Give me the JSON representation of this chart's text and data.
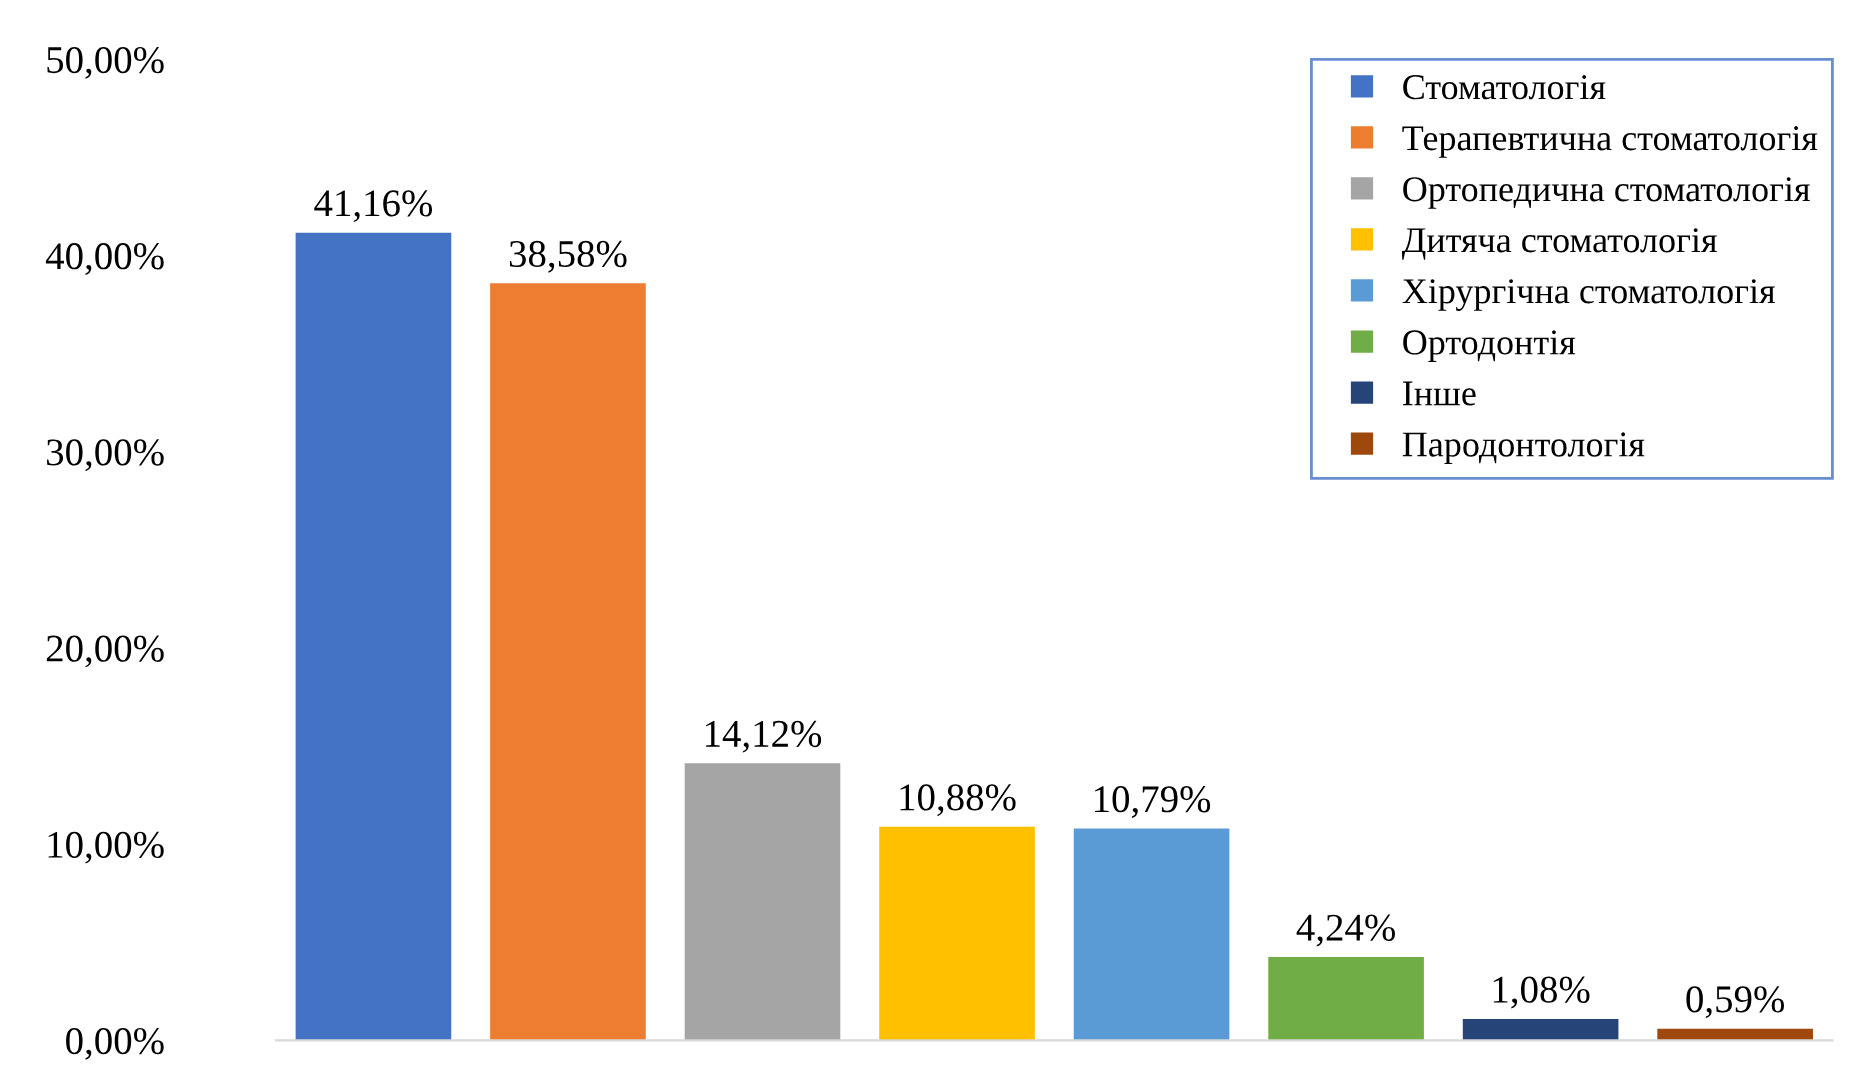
{
  "chart_data": {
    "type": "bar",
    "categories": [
      null,
      null,
      null,
      null,
      null,
      null,
      null,
      null
    ],
    "series": [
      {
        "name": "Стоматологія",
        "color": "#4472c4",
        "values": [
          41.16,
          null,
          null,
          null,
          null,
          null,
          null,
          null
        ],
        "value_labels": [
          "41,16%",
          null,
          null,
          null,
          null,
          null,
          null,
          null
        ]
      },
      {
        "name": "Терапевтична стоматологія",
        "color": "#ed7d31",
        "values": [
          null,
          38.58,
          null,
          null,
          null,
          null,
          null,
          null
        ],
        "value_labels": [
          null,
          "38,58%",
          null,
          null,
          null,
          null,
          null,
          null
        ]
      },
      {
        "name": "Ортопедична стоматологія",
        "color": "#a5a5a5",
        "values": [
          null,
          null,
          14.12,
          null,
          null,
          null,
          null,
          null
        ],
        "value_labels": [
          null,
          null,
          "14,12%",
          null,
          null,
          null,
          null,
          null
        ]
      },
      {
        "name": "Дитяча стоматологія",
        "color": "#ffc000",
        "values": [
          null,
          null,
          null,
          10.88,
          null,
          null,
          null,
          null
        ],
        "value_labels": [
          null,
          null,
          null,
          "10,88%",
          null,
          null,
          null,
          null
        ]
      },
      {
        "name": "Хірургічна стоматологія",
        "color": "#5b9bd5",
        "values": [
          null,
          null,
          null,
          null,
          10.79,
          null,
          null,
          null
        ],
        "value_labels": [
          null,
          null,
          null,
          null,
          "10,79%",
          null,
          null,
          null
        ]
      },
      {
        "name": "Ортодонтія",
        "color": "#70ad47",
        "values": [
          null,
          null,
          null,
          null,
          null,
          4.24,
          null,
          null
        ],
        "value_labels": [
          null,
          null,
          null,
          null,
          null,
          "4,24%",
          null,
          null
        ]
      },
      {
        "name": "Інше",
        "color": "#264478",
        "values": [
          null,
          null,
          null,
          null,
          null,
          null,
          1.08,
          null
        ],
        "value_labels": [
          null,
          null,
          null,
          null,
          null,
          null,
          "1,08%",
          null
        ]
      },
      {
        "name": "Пародонтологія",
        "color": "#9e480e",
        "values": [
          null,
          null,
          null,
          null,
          null,
          null,
          null,
          0.59
        ],
        "value_labels": [
          null,
          null,
          null,
          null,
          null,
          null,
          null,
          "0,59%"
        ]
      }
    ],
    "ylim": [
      0,
      50
    ],
    "yticks": [
      {
        "value": 0,
        "label": "0,00%"
      },
      {
        "value": 10,
        "label": "10,00%"
      },
      {
        "value": 20,
        "label": "20,00%"
      },
      {
        "value": 30,
        "label": "30,00%"
      },
      {
        "value": 40,
        "label": "40,00%"
      },
      {
        "value": 50,
        "label": "50,00%"
      }
    ],
    "tick_labels": "y",
    "grid": false,
    "legend": "top right",
    "marker": "square"
  }
}
